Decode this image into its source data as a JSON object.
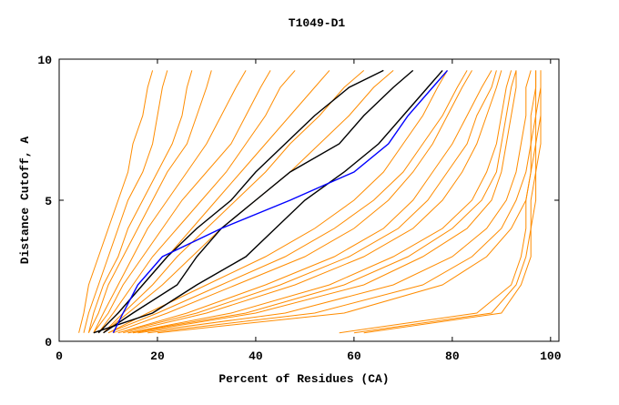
{
  "chart_data": {
    "type": "line",
    "title": "T1049-D1",
    "xlabel": "Percent of Residues (CA)",
    "ylabel": "Distance Cutoff, A",
    "xlim": [
      0,
      101.7
    ],
    "ylim": [
      0,
      10
    ],
    "xticks": [
      0,
      20,
      40,
      60,
      80,
      100
    ],
    "yticks": [
      0,
      5,
      10
    ],
    "grid": false,
    "colors": {
      "other": "#ff8c00",
      "highlight": "#000000",
      "selected": "#0000ff"
    },
    "y": [
      0.3,
      1,
      2,
      3,
      4,
      5,
      6,
      7,
      8,
      9,
      9.6
    ],
    "series": [
      {
        "group": "other",
        "x": [
          4,
          5,
          6,
          8,
          10,
          12,
          14,
          15,
          17,
          18,
          19
        ]
      },
      {
        "group": "other",
        "x": [
          5,
          6,
          8,
          10,
          12,
          14,
          17,
          19,
          20,
          21,
          22
        ]
      },
      {
        "group": "other",
        "x": [
          6,
          7,
          9,
          12,
          14,
          17,
          20,
          23,
          25,
          26,
          27
        ]
      },
      {
        "group": "other",
        "x": [
          6,
          8,
          10,
          13,
          16,
          19,
          22,
          26,
          28,
          30,
          31
        ]
      },
      {
        "group": "other",
        "x": [
          7,
          9,
          12,
          15,
          18,
          22,
          26,
          30,
          33,
          36,
          38
        ]
      },
      {
        "group": "other",
        "x": [
          7,
          10,
          13,
          17,
          21,
          25,
          30,
          35,
          38,
          41,
          43
        ]
      },
      {
        "group": "other",
        "x": [
          8,
          11,
          15,
          19,
          24,
          29,
          34,
          38,
          42,
          45,
          48
        ]
      },
      {
        "group": "other",
        "x": [
          8,
          12,
          17,
          22,
          27,
          32,
          37,
          42,
          47,
          52,
          55
        ]
      },
      {
        "group": "other",
        "x": [
          9,
          13,
          19,
          24,
          30,
          36,
          42,
          47,
          53,
          58,
          62
        ]
      },
      {
        "group": "other",
        "x": [
          9,
          14,
          21,
          27,
          33,
          40,
          47,
          53,
          59,
          64,
          68
        ]
      },
      {
        "group": "other",
        "x": [
          10,
          18,
          30,
          42,
          52,
          60,
          66,
          70,
          74,
          77,
          79
        ]
      },
      {
        "group": "other",
        "x": [
          11,
          22,
          36,
          50,
          60,
          67,
          72,
          76,
          79,
          82,
          84
        ]
      },
      {
        "group": "other",
        "x": [
          12,
          26,
          42,
          56,
          66,
          72,
          76,
          80,
          83,
          86,
          88
        ]
      },
      {
        "group": "other",
        "x": [
          13,
          30,
          48,
          62,
          72,
          78,
          82,
          85,
          87,
          89,
          90
        ]
      },
      {
        "group": "other",
        "x": [
          14,
          35,
          55,
          68,
          78,
          84,
          87,
          89,
          90,
          91,
          92
        ]
      },
      {
        "group": "other",
        "x": [
          15,
          40,
          62,
          74,
          83,
          88,
          90,
          91,
          92,
          93,
          93
        ]
      },
      {
        "group": "other",
        "x": [
          16,
          46,
          68,
          80,
          87,
          91,
          93,
          94,
          95,
          95,
          96
        ]
      },
      {
        "group": "other",
        "x": [
          18,
          52,
          74,
          84,
          90,
          93,
          95,
          96,
          96,
          97,
          97
        ]
      },
      {
        "group": "other",
        "x": [
          20,
          58,
          78,
          87,
          92,
          95,
          96,
          97,
          97,
          98,
          98
        ]
      },
      {
        "group": "other",
        "x": [
          10,
          20,
          33,
          46,
          56,
          64,
          70,
          74,
          78,
          81,
          83
        ]
      },
      {
        "group": "other",
        "x": [
          12,
          28,
          45,
          59,
          69,
          75,
          79,
          83,
          85,
          88,
          89
        ]
      },
      {
        "group": "other",
        "x": [
          14,
          38,
          58,
          71,
          80,
          86,
          89,
          90,
          91,
          92,
          93
        ]
      },
      {
        "group": "other",
        "x": [
          57,
          85,
          92,
          94,
          95,
          95,
          96,
          96,
          97,
          97,
          97
        ]
      },
      {
        "group": "other",
        "x": [
          60,
          88,
          93,
          95,
          96,
          96,
          97,
          97,
          98,
          98,
          98
        ]
      },
      {
        "group": "other",
        "x": [
          62,
          90,
          94,
          96,
          96,
          97,
          97,
          98,
          98,
          98,
          98
        ]
      },
      {
        "group": "highlight",
        "x": [
          8,
          12,
          17,
          22,
          28,
          35,
          40,
          46,
          52,
          59,
          66
        ]
      },
      {
        "group": "highlight",
        "x": [
          9,
          15,
          24,
          28,
          33,
          40,
          47,
          57,
          62,
          68,
          72
        ]
      },
      {
        "group": "highlight",
        "x": [
          7,
          19,
          28,
          38,
          44,
          50,
          58,
          65,
          70,
          75,
          78
        ]
      },
      {
        "group": "selected",
        "x": [
          11,
          13,
          16,
          21,
          33,
          47,
          60,
          67,
          71,
          76,
          79
        ]
      }
    ]
  }
}
